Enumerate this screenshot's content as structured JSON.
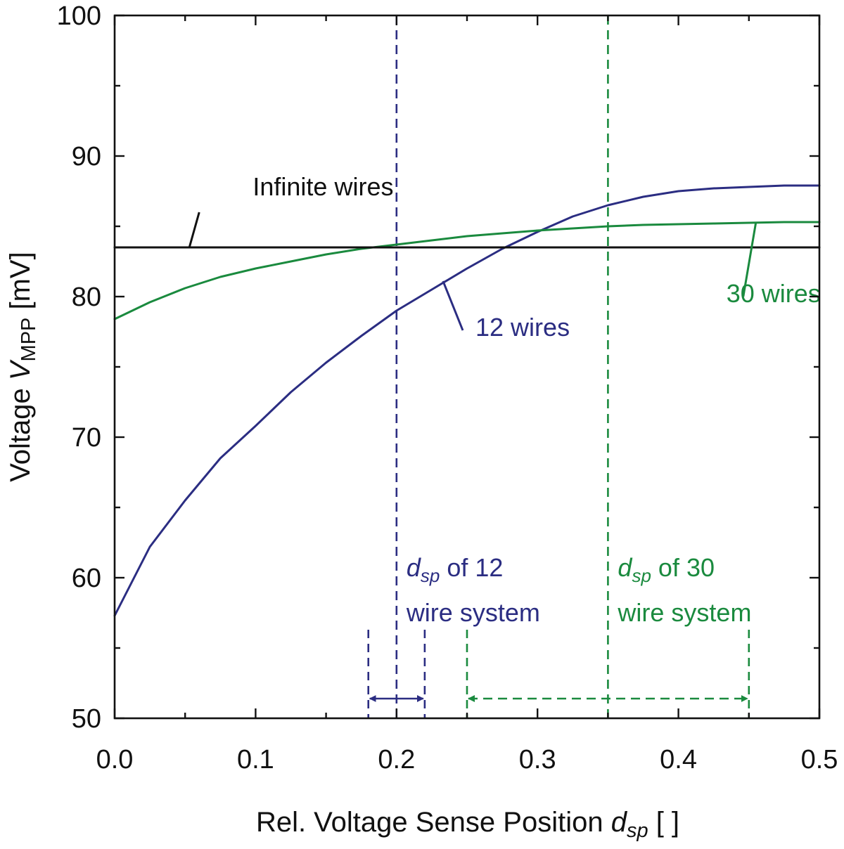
{
  "chart_data": {
    "type": "line",
    "xlabel_prefix": "Rel. Voltage Sense Position ",
    "xlabel_var": "d",
    "xlabel_sub": "sp",
    "xlabel_unit": " [ ]",
    "ylabel_prefix": "Voltage ",
    "ylabel_var": "V",
    "ylabel_sub": "MPP",
    "ylabel_unit": " [mV]",
    "xlim": [
      0.0,
      0.5
    ],
    "ylim": [
      50,
      100
    ],
    "x_ticks": [
      "0.0",
      "0.1",
      "0.2",
      "0.3",
      "0.4",
      "0.5"
    ],
    "y_ticks": [
      "50",
      "60",
      "70",
      "80",
      "90",
      "100"
    ],
    "grid": false,
    "colors": {
      "blue": "#2b2d82",
      "green": "#1a8a3e",
      "black": "#111111"
    },
    "series": [
      {
        "name": "12 wires",
        "color": "#2b2d82",
        "x": [
          0.0,
          0.025,
          0.05,
          0.075,
          0.1,
          0.125,
          0.15,
          0.175,
          0.2,
          0.225,
          0.25,
          0.275,
          0.3,
          0.325,
          0.35,
          0.375,
          0.4,
          0.425,
          0.45,
          0.475,
          0.5
        ],
        "y": [
          57.3,
          62.2,
          65.5,
          68.5,
          70.8,
          73.2,
          75.3,
          77.2,
          79.0,
          80.5,
          82.0,
          83.4,
          84.6,
          85.7,
          86.5,
          87.1,
          87.5,
          87.7,
          87.8,
          87.9,
          87.9
        ]
      },
      {
        "name": "30 wires",
        "color": "#1a8a3e",
        "x": [
          0.0,
          0.025,
          0.05,
          0.075,
          0.1,
          0.125,
          0.15,
          0.175,
          0.2,
          0.225,
          0.25,
          0.275,
          0.3,
          0.325,
          0.35,
          0.375,
          0.4,
          0.425,
          0.45,
          0.475,
          0.5
        ],
        "y": [
          78.4,
          79.6,
          80.6,
          81.4,
          82.0,
          82.5,
          83.0,
          83.4,
          83.7,
          84.0,
          84.3,
          84.5,
          84.7,
          84.85,
          85.0,
          85.1,
          85.15,
          85.2,
          85.25,
          85.3,
          85.3
        ]
      },
      {
        "name": "Infinite wires",
        "color": "#111111",
        "x": [
          0.0,
          0.5
        ],
        "y": [
          83.5,
          83.5
        ]
      }
    ],
    "curve_labels": [
      {
        "series": 2,
        "text": "Infinite wires",
        "color": "#111111",
        "lx": 0.098,
        "ly": 87.2,
        "ax0": 0.06,
        "ay0": 86.0,
        "ax1": 0.053,
        "ay1": 83.5
      },
      {
        "series": 0,
        "text": "12 wires",
        "color": "#2b2d82",
        "lx": 0.256,
        "ly": 77.2,
        "ax0": 0.247,
        "ay0": 77.6,
        "ax1": 0.233,
        "ay1": 81.1
      },
      {
        "series": 1,
        "text": "30 wires",
        "color": "#1a8a3e",
        "lx": 0.434,
        "ly": 79.6,
        "ax0": 0.446,
        "ay0": 80.0,
        "ax1": 0.455,
        "ay1": 85.3
      }
    ],
    "markers": [
      {
        "color": "#2b2d82",
        "center": 0.2,
        "range": [
          0.18,
          0.22
        ],
        "label_var": "d",
        "label_sub": "sp",
        "label_line1": " of 12",
        "label_line2": "wire system",
        "label_x": 0.207,
        "label_y1": 60.1,
        "label_y2": 56.9,
        "range_top": 56.3,
        "arrow_y": 51.4,
        "arrow_dashed": false
      },
      {
        "color": "#1a8a3e",
        "center": 0.35,
        "range": [
          0.25,
          0.45
        ],
        "label_var": "d",
        "label_sub": "sp",
        "label_line1": " of 30",
        "label_line2": "wire system",
        "label_x": 0.357,
        "label_y1": 60.1,
        "label_y2": 56.9,
        "range_top": 56.3,
        "arrow_y": 51.4,
        "arrow_dashed": true
      }
    ]
  }
}
